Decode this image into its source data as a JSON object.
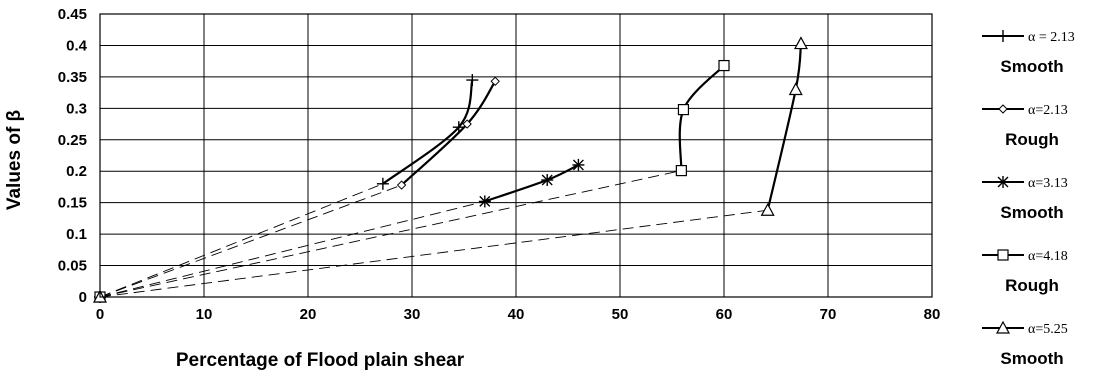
{
  "chart_data": {
    "type": "line",
    "xlabel": "Percentage of Flood plain  shear",
    "ylabel": "Values of β",
    "xlim": [
      0,
      80
    ],
    "ylim": [
      0,
      0.45
    ],
    "xticks": [
      "0",
      "10",
      "20",
      "30",
      "40",
      "50",
      "60",
      "70",
      "80"
    ],
    "yticks": [
      "0",
      "0.05",
      "0.1",
      "0.15",
      "0.2",
      "0.25",
      "0.3",
      "0.35",
      "0.4",
      "0.45"
    ],
    "grid": true,
    "legend_position": "right",
    "series": [
      {
        "name": "α = 2.13",
        "condition": "Smooth",
        "marker": "plus",
        "points": [
          [
            27.2,
            0.18
          ],
          [
            34.5,
            0.27
          ],
          [
            35.8,
            0.345
          ]
        ]
      },
      {
        "name": "α=2.13",
        "condition": "Rough",
        "marker": "diamond",
        "points": [
          [
            29,
            0.178
          ],
          [
            35.3,
            0.275
          ],
          [
            38,
            0.343
          ]
        ]
      },
      {
        "name": "α=3.13",
        "condition": "Smooth",
        "marker": "asterisk",
        "points": [
          [
            37,
            0.152
          ],
          [
            43,
            0.186
          ],
          [
            46,
            0.21
          ]
        ]
      },
      {
        "name": "α=4.18",
        "condition": "Rough",
        "marker": "square",
        "points": [
          [
            55.9,
            0.201
          ],
          [
            56.1,
            0.298
          ],
          [
            60,
            0.368
          ]
        ]
      },
      {
        "name": "α=5.25",
        "condition": "Smooth",
        "marker": "triangle",
        "points": [
          [
            64.2,
            0.138
          ],
          [
            66.9,
            0.33
          ],
          [
            67.4,
            0.403
          ]
        ]
      }
    ]
  }
}
